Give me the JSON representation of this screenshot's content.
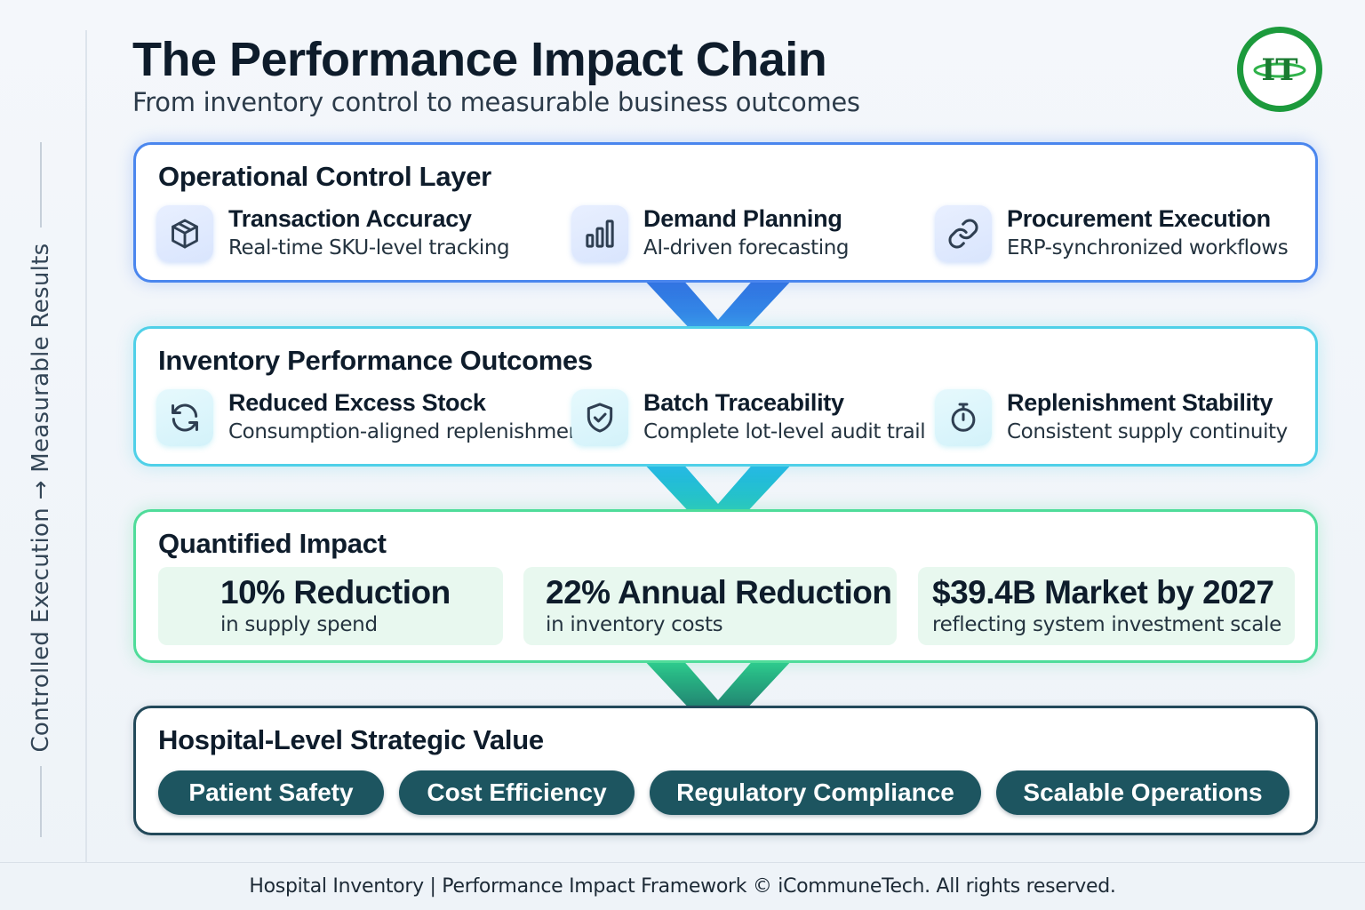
{
  "header": {
    "title": "The Performance Impact Chain",
    "subtitle": "From inventory control to measurable business outcomes",
    "logo_text": "IT"
  },
  "side_caption": "Controlled Execution → Measurable Results",
  "layers": [
    {
      "title": "Operational Control Layer",
      "accent": "#4a86ee",
      "items": [
        {
          "icon": "box-icon",
          "title": "Transaction Accuracy",
          "desc": "Real-time SKU-level tracking"
        },
        {
          "icon": "bar-chart-icon",
          "title": "Demand Planning",
          "desc": "AI-driven forecasting"
        },
        {
          "icon": "link-icon",
          "title": "Procurement Execution",
          "desc": "ERP-synchronized workflows"
        }
      ]
    },
    {
      "title": "Inventory Performance Outcomes",
      "accent": "#4fd0e8",
      "items": [
        {
          "icon": "refresh-icon",
          "title": "Reduced Excess Stock",
          "desc": "Consumption-aligned replenishment"
        },
        {
          "icon": "shield-check-icon",
          "title": "Batch Traceability",
          "desc": "Complete lot-level audit trail"
        },
        {
          "icon": "stopwatch-icon",
          "title": "Replenishment Stability",
          "desc": "Consistent supply continuity"
        }
      ]
    },
    {
      "title": "Quantified Impact",
      "accent": "#4fdc9a",
      "metrics": [
        {
          "value": "10% Reduction",
          "desc": "in supply spend"
        },
        {
          "value": "22% Annual Reduction",
          "desc": "in inventory costs"
        },
        {
          "value": "$39.4B Market by 2027",
          "desc": "reflecting system investment scale"
        }
      ]
    },
    {
      "title": "Hospital-Level Strategic Value",
      "accent": "#1d5560",
      "pills": [
        "Patient Safety",
        "Cost Efficiency",
        "Regulatory Compliance",
        "Scalable Operations"
      ]
    }
  ],
  "footer": "Hospital Inventory | Performance Impact Framework © iCommuneTech. All rights reserved."
}
